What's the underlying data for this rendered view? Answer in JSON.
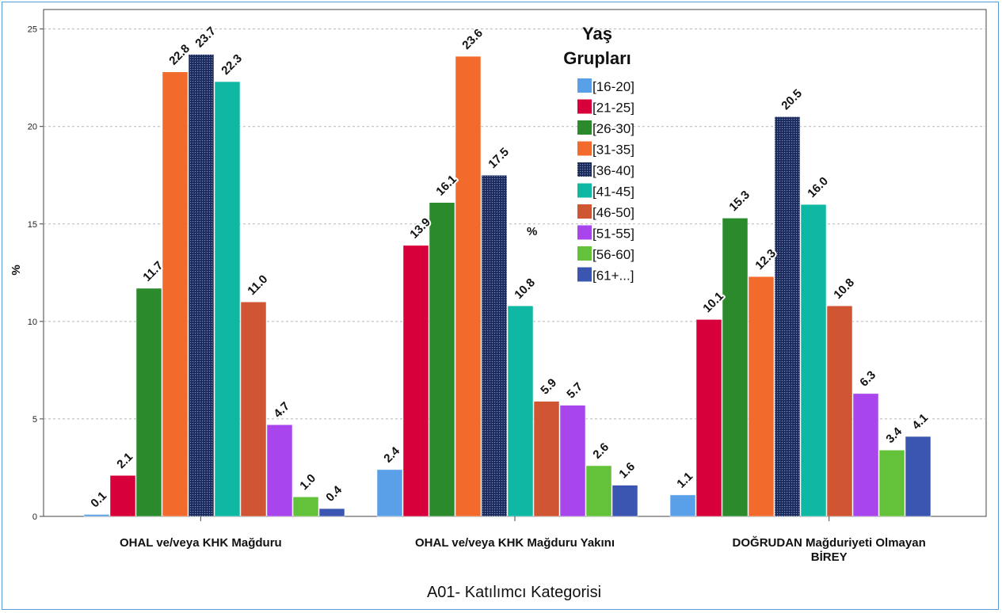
{
  "chart_data": {
    "type": "bar",
    "xlabel": "A01- Katılımcı Kategorisi",
    "ylabel": "%",
    "ylim": [
      0,
      26
    ],
    "yticks": [
      0,
      5,
      10,
      15,
      20,
      25
    ],
    "grid": true,
    "legend_title_line1": "Yaş",
    "legend_title_line2": "Grupları",
    "legend_placement": "top-center",
    "in_plot_unit": "%",
    "categories": [
      [
        "OHAL ve/veya KHK Mağduru"
      ],
      [
        "OHAL ve/veya KHK Mağduru Yakını"
      ],
      [
        "DOĞRUDAN Mağduriyeti Olmayan",
        "BİREY"
      ]
    ],
    "series": [
      {
        "name": "[16-20]",
        "color": "#5aa0e8",
        "values": [
          0.1,
          2.4,
          1.1
        ]
      },
      {
        "name": "[21-25]",
        "color": "#d8003a",
        "values": [
          2.1,
          13.9,
          10.1
        ]
      },
      {
        "name": "[26-30]",
        "color": "#2b8a2b",
        "values": [
          11.7,
          16.1,
          15.3
        ]
      },
      {
        "name": "[31-35]",
        "color": "#f36b2c",
        "values": [
          22.8,
          23.6,
          12.3
        ]
      },
      {
        "name": "[36-40]",
        "color": "#1a2a5a",
        "pattern": "dots",
        "values": [
          23.7,
          17.5,
          20.5
        ]
      },
      {
        "name": "[41-45]",
        "color": "#0fb8a3",
        "values": [
          22.3,
          10.8,
          16.0
        ]
      },
      {
        "name": "[46-50]",
        "color": "#cf5533",
        "values": [
          11.0,
          5.9,
          10.8
        ]
      },
      {
        "name": "[51-55]",
        "color": "#a845ec",
        "values": [
          4.7,
          5.7,
          6.3
        ]
      },
      {
        "name": "[56-60]",
        "color": "#63c23a",
        "values": [
          1.0,
          2.6,
          3.4
        ]
      },
      {
        "name": "[61+...]",
        "color": "#3a56b0",
        "values": [
          0.4,
          1.6,
          4.1
        ]
      }
    ]
  }
}
